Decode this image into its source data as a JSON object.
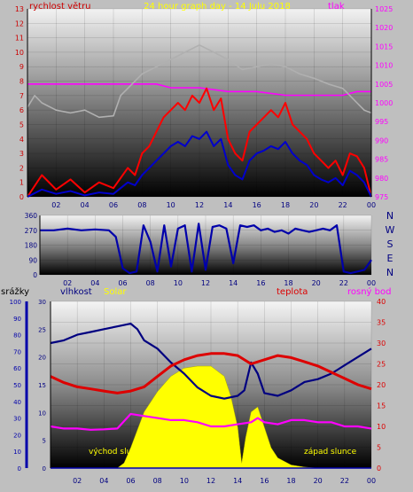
{
  "chart_data": [
    {
      "type": "line",
      "title": "24 hour graph day - 14 Julu 2018",
      "left_label": "rychlost větru",
      "right_label": "tlak",
      "x_ticks": [
        "02",
        "04",
        "06",
        "08",
        "10",
        "12",
        "14",
        "16",
        "18",
        "20",
        "22",
        "00"
      ],
      "y_left_ticks": [
        "0",
        "1",
        "2",
        "3",
        "4",
        "5",
        "6",
        "7",
        "8",
        "9",
        "10",
        "11",
        "12",
        "13"
      ],
      "y_right_ticks": [
        "975",
        "980",
        "985",
        "990",
        "995",
        "1000",
        "1005",
        "1010",
        "1015",
        "1020",
        "1025"
      ],
      "ylim_left": [
        0,
        13
      ],
      "ylim_right": [
        975,
        1025
      ],
      "colors": {
        "gust": "#ff0000",
        "wind": "#0000cc",
        "pressure": "#ff00ff",
        "gray": "#b0b0b0"
      },
      "series": [
        {
          "key": "pressure",
          "axis": "right",
          "x": [
            0,
            2,
            4,
            6,
            8,
            9,
            10,
            12,
            14,
            16,
            18,
            20,
            21,
            22,
            23,
            24
          ],
          "values": [
            1005,
            1005,
            1005,
            1005,
            1005,
            1005,
            1004,
            1004,
            1003,
            1003,
            1002,
            1002,
            1002,
            1002,
            1003,
            1003
          ]
        },
        {
          "key": "gray",
          "axis": "left",
          "x": [
            0,
            0.5,
            1,
            2,
            3,
            4,
            5,
            6,
            6.5,
            7,
            8,
            9,
            10,
            11,
            12,
            13,
            14,
            15,
            16,
            17,
            18,
            19,
            20,
            21,
            22,
            22.5,
            23,
            23.5,
            24
          ],
          "values": [
            6.2,
            7,
            6.5,
            6,
            5.8,
            6,
            5.5,
            5.6,
            7,
            7.5,
            8.5,
            9,
            9.5,
            10,
            10.5,
            10,
            9.5,
            8.8,
            9,
            9.2,
            9,
            8.5,
            8.2,
            7.8,
            7.5,
            7,
            6.5,
            6,
            5.8
          ]
        },
        {
          "key": "gust",
          "axis": "left",
          "x": [
            0,
            1,
            2,
            3,
            4,
            5,
            6,
            7,
            7.5,
            8,
            8.5,
            9,
            9.5,
            10,
            10.5,
            11,
            11.5,
            12,
            12.5,
            13,
            13.5,
            14,
            14.5,
            15,
            15.5,
            16,
            16.5,
            17,
            17.5,
            18,
            18.5,
            19,
            19.5,
            20,
            20.5,
            21,
            21.5,
            22,
            22.5,
            23,
            23.5,
            24
          ],
          "values": [
            0,
            1.5,
            0.5,
            1.2,
            0.3,
            1,
            0.6,
            2,
            1.5,
            3,
            3.5,
            4.5,
            5.5,
            6,
            6.5,
            6,
            7,
            6.5,
            7.5,
            6,
            6.8,
            4,
            3,
            2.5,
            4.5,
            5,
            5.5,
            6,
            5.5,
            6.5,
            5,
            4.5,
            4,
            3,
            2.5,
            2,
            2.5,
            1.5,
            3,
            2.8,
            2,
            0
          ]
        },
        {
          "key": "wind",
          "axis": "left",
          "x": [
            0,
            1,
            2,
            3,
            4,
            5,
            6,
            7,
            7.5,
            8,
            8.5,
            9,
            9.5,
            10,
            10.5,
            11,
            11.5,
            12,
            12.5,
            13,
            13.5,
            14,
            14.5,
            15,
            15.5,
            16,
            16.5,
            17,
            17.5,
            18,
            18.5,
            19,
            19.5,
            20,
            20.5,
            21,
            21.5,
            22,
            22.5,
            23,
            23.5,
            24
          ],
          "values": [
            0,
            0.5,
            0.2,
            0.4,
            0.1,
            0.3,
            0.2,
            1,
            0.8,
            1.5,
            2,
            2.5,
            3,
            3.5,
            3.8,
            3.5,
            4.2,
            4,
            4.5,
            3.5,
            4,
            2.2,
            1.5,
            1.2,
            2.5,
            3,
            3.2,
            3.5,
            3.3,
            3.8,
            3,
            2.5,
            2.2,
            1.5,
            1.2,
            1,
            1.3,
            0.8,
            1.8,
            1.5,
            1,
            0
          ]
        }
      ]
    },
    {
      "type": "line",
      "title": "",
      "direction_labels": [
        "N",
        "W",
        "S",
        "E",
        "N"
      ],
      "x_ticks": [
        "02",
        "04",
        "06",
        "08",
        "10",
        "12",
        "14",
        "16",
        "18",
        "20",
        "22",
        "00"
      ],
      "y_ticks": [
        "0",
        "90",
        "180",
        "270",
        "360"
      ],
      "ylim": [
        0,
        360
      ],
      "colors": {
        "direction": "#0000aa"
      },
      "series": [
        {
          "key": "direction",
          "x": [
            0,
            1,
            2,
            3,
            4,
            5,
            5.5,
            6,
            6.5,
            7,
            7.5,
            8,
            8.5,
            9,
            9.5,
            10,
            10.5,
            11,
            11.5,
            12,
            12.5,
            13,
            13.5,
            14,
            14.5,
            15,
            15.5,
            16,
            16.5,
            17,
            17.5,
            18,
            18.5,
            19,
            19.5,
            20,
            20.5,
            21,
            21.5,
            22,
            22.5,
            23,
            23.5,
            24
          ],
          "values": [
            270,
            270,
            280,
            270,
            275,
            270,
            230,
            40,
            10,
            20,
            300,
            200,
            20,
            300,
            50,
            280,
            300,
            20,
            310,
            30,
            290,
            300,
            280,
            70,
            300,
            290,
            300,
            270,
            280,
            260,
            270,
            250,
            280,
            270,
            260,
            270,
            280,
            270,
            300,
            20,
            10,
            20,
            30,
            90
          ]
        }
      ]
    },
    {
      "type": "area",
      "left_label_1": "srážky",
      "left_label_2": "vlhkost",
      "left_label_3": "Solar",
      "right_label_1": "teplota",
      "right_label_2": "rosný bod",
      "sunrise_label": "východ slunce",
      "sunset_label": "západ slunce",
      "x_ticks": [
        "02",
        "04",
        "06",
        "08",
        "10",
        "12",
        "14",
        "16",
        "18",
        "20",
        "22",
        "00"
      ],
      "y_rain_ticks": [
        "0",
        "10",
        "20",
        "30",
        "40",
        "50",
        "60",
        "70",
        "80",
        "90",
        "100"
      ],
      "y_humidity_ticks": [
        "0",
        "5",
        "10",
        "15",
        "20",
        "25",
        "30"
      ],
      "y_temp_ticks": [
        "0",
        "5",
        "10",
        "15",
        "20",
        "25",
        "30",
        "35",
        "40"
      ],
      "ylim_temp": [
        0,
        40
      ],
      "colors": {
        "solar": "#ffff00",
        "humidity": "#000080",
        "temperature": "#dd0000",
        "dewpoint": "#ff00ff",
        "rain": "#0000aa"
      },
      "series": [
        {
          "key": "solar",
          "x": [
            0,
            5,
            5.5,
            6,
            7,
            8,
            9,
            10,
            11,
            12,
            13,
            13.5,
            14,
            14.3,
            14.6,
            15,
            15.5,
            16,
            16.5,
            17,
            18,
            19,
            20,
            21,
            24
          ],
          "values": [
            0,
            0,
            0.05,
            0.2,
            0.55,
            0.75,
            0.9,
            0.98,
            1,
            1,
            0.9,
            0.7,
            0.4,
            0.05,
            0.3,
            0.55,
            0.6,
            0.4,
            0.2,
            0.1,
            0.03,
            0.01,
            0,
            0,
            0
          ]
        },
        {
          "key": "humidity",
          "x": [
            0,
            1,
            2,
            3,
            4,
            5,
            6,
            6.5,
            7,
            8,
            9,
            10,
            11,
            12,
            13,
            14,
            14.5,
            15,
            15.5,
            16,
            17,
            18,
            19,
            20,
            21,
            22,
            23,
            24
          ],
          "values": [
            22.5,
            23,
            24,
            24.5,
            25,
            25.5,
            26,
            25,
            23,
            21.5,
            19,
            17,
            14.5,
            13,
            12.5,
            13,
            14,
            19,
            17,
            13.5,
            13,
            14,
            15.5,
            16,
            17,
            18.5,
            20,
            21.5
          ]
        },
        {
          "key": "temperature",
          "x": [
            0,
            1,
            2,
            3,
            4,
            5,
            6,
            7,
            8,
            9,
            10,
            11,
            12,
            13,
            14,
            15,
            16,
            17,
            18,
            19,
            20,
            21,
            22,
            23,
            24
          ],
          "values": [
            22,
            20.5,
            19.5,
            19,
            18.5,
            18,
            18.5,
            19.5,
            22,
            24.5,
            26,
            27,
            27.5,
            27.5,
            27,
            25,
            26,
            27,
            26.5,
            25.5,
            24.5,
            23,
            21.5,
            20,
            19
          ]
        },
        {
          "key": "dewpoint",
          "x": [
            0,
            1,
            2,
            3,
            4,
            5,
            6,
            7,
            8,
            9,
            10,
            11,
            12,
            13,
            14,
            15,
            15.5,
            16,
            17,
            18,
            19,
            20,
            21,
            22,
            23,
            24
          ],
          "values": [
            10,
            9.5,
            9.5,
            9.2,
            9.3,
            9.5,
            13,
            12.5,
            12,
            11.5,
            11.5,
            11,
            10,
            10,
            10.5,
            11,
            12,
            11,
            10.5,
            11.5,
            11.5,
            11,
            11,
            10,
            10,
            9.5
          ]
        },
        {
          "key": "rain",
          "x": [
            0,
            24
          ],
          "values": [
            0,
            0
          ]
        }
      ]
    }
  ]
}
